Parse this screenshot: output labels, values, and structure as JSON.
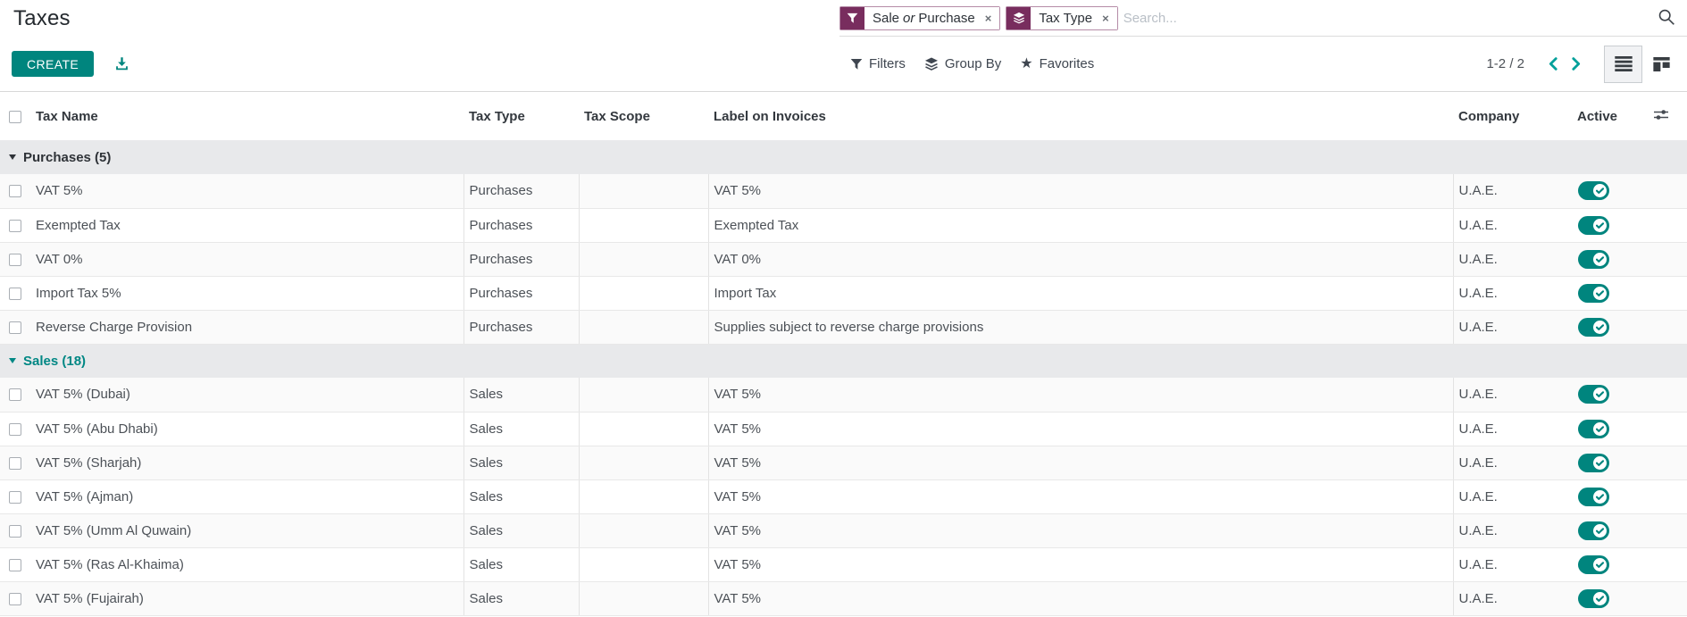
{
  "page_title": "Taxes",
  "searchbar": {
    "facets": {
      "sale_or_purchase": {
        "part1": "Sale",
        "conj": "or",
        "part2": "Purchase",
        "icon": "filter-icon"
      },
      "tax_type": {
        "label": "Tax Type",
        "icon": "layers-icon"
      }
    },
    "remove_glyph": "×",
    "placeholder": "Search..."
  },
  "toolbar": {
    "create_label": "CREATE",
    "filters_label": "Filters",
    "group_by_label": "Group By",
    "favorites_label": "Favorites",
    "favorites_star_glyph": "★"
  },
  "pager": {
    "text": "1-2 / 2"
  },
  "view_switcher": {
    "active_view": "list",
    "views": [
      "list",
      "kanban"
    ]
  },
  "table": {
    "columns": [
      "Tax Name",
      "Tax Type",
      "Tax Scope",
      "Label on Invoices",
      "Company",
      "Active"
    ],
    "groups": [
      {
        "label": "Purchases (5)",
        "highlight": false,
        "rows": [
          {
            "name": "VAT 5%",
            "type": "Purchases",
            "scope": "",
            "label": "VAT 5%",
            "company": "U.A.E.",
            "active": true
          },
          {
            "name": "Exempted Tax",
            "type": "Purchases",
            "scope": "",
            "label": "Exempted Tax",
            "company": "U.A.E.",
            "active": true
          },
          {
            "name": "VAT 0%",
            "type": "Purchases",
            "scope": "",
            "label": "VAT 0%",
            "company": "U.A.E.",
            "active": true
          },
          {
            "name": "Import Tax 5%",
            "type": "Purchases",
            "scope": "",
            "label": "Import Tax",
            "company": "U.A.E.",
            "active": true
          },
          {
            "name": "Reverse Charge Provision",
            "type": "Purchases",
            "scope": "",
            "label": "Supplies subject to reverse charge provisions",
            "company": "U.A.E.",
            "active": true
          }
        ]
      },
      {
        "label": "Sales (18)",
        "highlight": true,
        "rows": [
          {
            "name": "VAT 5% (Dubai)",
            "type": "Sales",
            "scope": "",
            "label": "VAT 5%",
            "company": "U.A.E.",
            "active": true
          },
          {
            "name": "VAT 5% (Abu Dhabi)",
            "type": "Sales",
            "scope": "",
            "label": "VAT 5%",
            "company": "U.A.E.",
            "active": true
          },
          {
            "name": "VAT 5% (Sharjah)",
            "type": "Sales",
            "scope": "",
            "label": "VAT 5%",
            "company": "U.A.E.",
            "active": true
          },
          {
            "name": "VAT 5% (Ajman)",
            "type": "Sales",
            "scope": "",
            "label": "VAT 5%",
            "company": "U.A.E.",
            "active": true
          },
          {
            "name": "VAT 5% (Umm Al Quwain)",
            "type": "Sales",
            "scope": "",
            "label": "VAT 5%",
            "company": "U.A.E.",
            "active": true
          },
          {
            "name": "VAT 5% (Ras Al-Khaima)",
            "type": "Sales",
            "scope": "",
            "label": "VAT 5%",
            "company": "U.A.E.",
            "active": true
          },
          {
            "name": "VAT 5% (Fujairah)",
            "type": "Sales",
            "scope": "",
            "label": "VAT 5%",
            "company": "U.A.E.",
            "active": true
          }
        ]
      }
    ]
  },
  "icons": {
    "search": "magnifier",
    "filter_facet": "funnel",
    "tax_type_facet": "layer-stack",
    "export": "download-tray",
    "group_by": "layer-stack",
    "favorites": "star",
    "pager_prev": "chevron-left",
    "pager_next": "chevron-right",
    "view_list": "list-lines",
    "view_kanban": "kanban-columns",
    "optional_columns": "sliders",
    "active_state": "toggle-with-check"
  },
  "colors": {
    "primary_teal": "#00857e",
    "pager_chevron_teal": "#00a09a",
    "facet_plum": "#782d5e",
    "group_row_bg": "#e8e9eb",
    "stripe_bg": "#fafafa",
    "header_text": "#33383e"
  }
}
